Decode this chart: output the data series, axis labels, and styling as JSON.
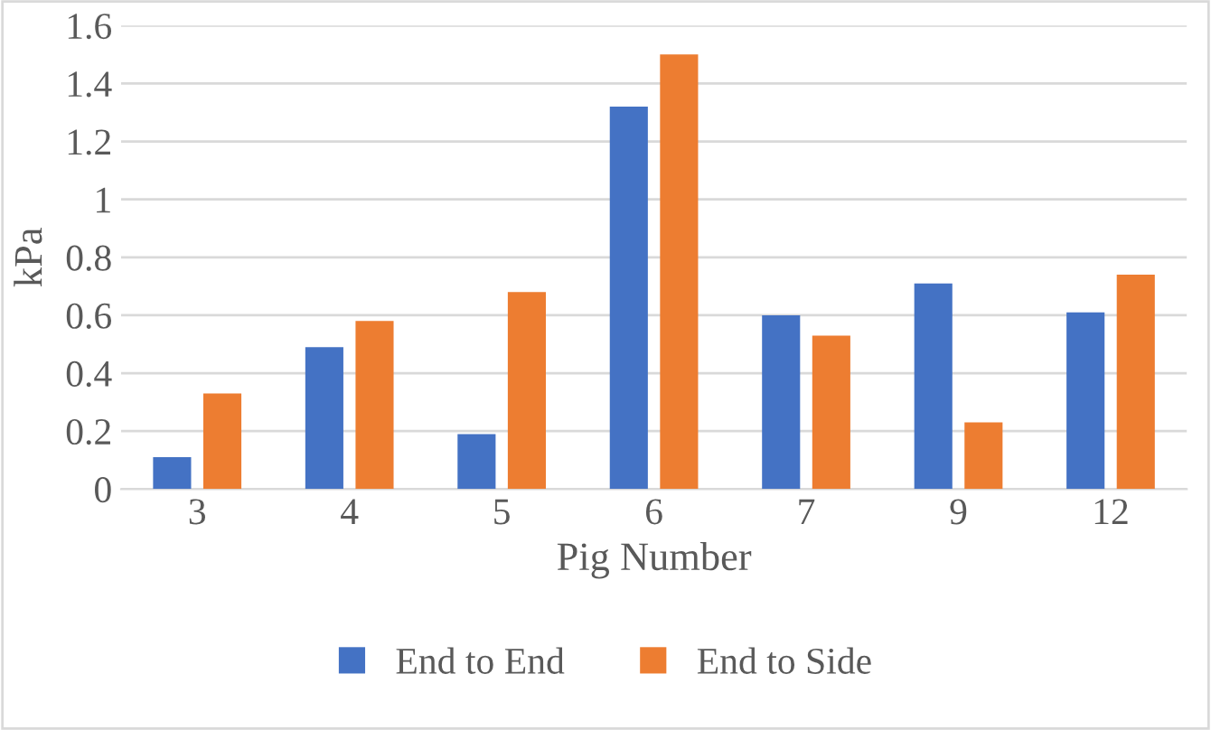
{
  "chart_data": {
    "type": "bar",
    "xlabel": "Pig Number",
    "ylabel": "kPa",
    "categories": [
      "3",
      "4",
      "5",
      "6",
      "7",
      "9",
      "12"
    ],
    "series": [
      {
        "name": "End to End",
        "color": "#4472c4",
        "values": [
          0.11,
          0.49,
          0.19,
          1.32,
          0.6,
          0.71,
          0.61
        ]
      },
      {
        "name": "End to Side",
        "color": "#ed7d31",
        "values": [
          0.33,
          0.58,
          0.68,
          1.5,
          0.53,
          0.23,
          0.74
        ]
      }
    ],
    "ylim": [
      0,
      1.6
    ],
    "yticks": [
      0,
      0.2,
      0.4,
      0.6,
      0.8,
      1,
      1.2,
      1.4,
      1.6
    ],
    "grid": "y",
    "legend": "bottom"
  }
}
